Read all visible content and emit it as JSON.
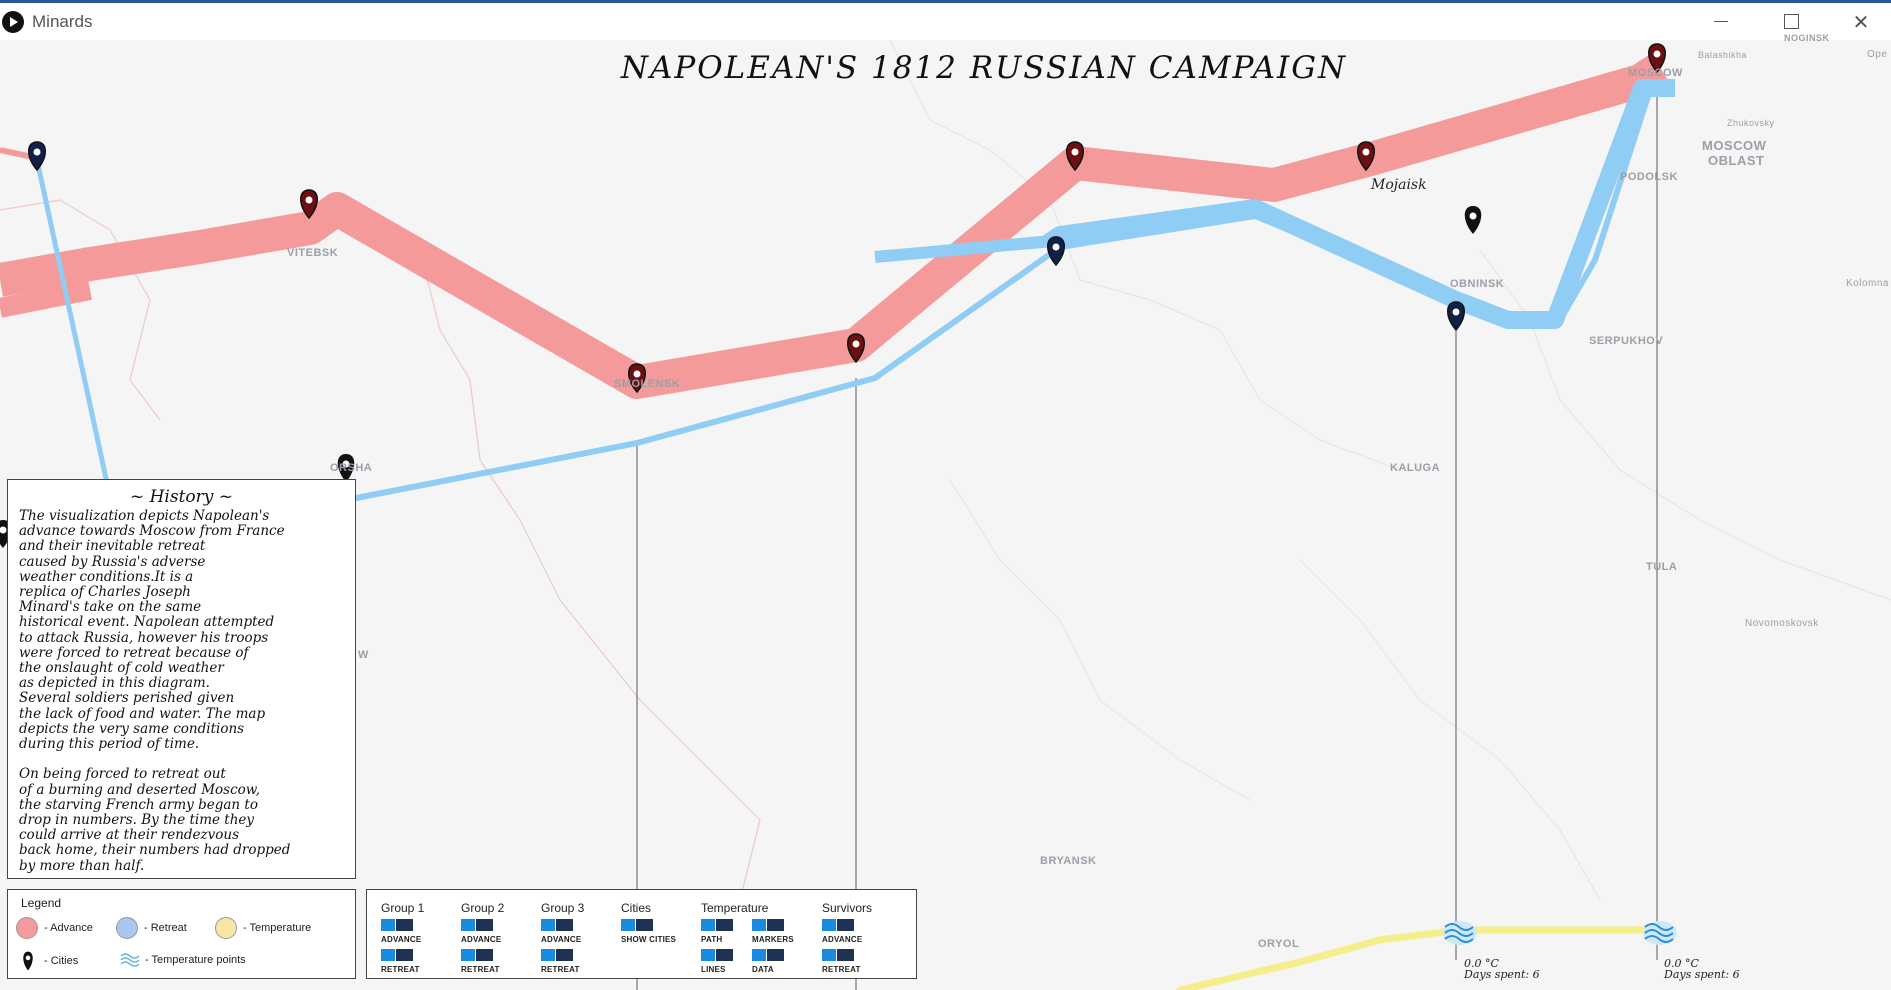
{
  "window": {
    "title": "Minards"
  },
  "map": {
    "title": "NAPOLEAN'S 1812 RUSSIAN CAMPAIGN",
    "annotation": "Mojaisk",
    "city_labels": [
      "VITEBSK",
      "SMOLENSK",
      "ORSHA",
      "MOSCOW",
      "PODOLSK",
      "OBNINSK",
      "SERPUKHOV",
      "KALUGA",
      "TULA",
      "BRYANSK",
      "ORYOL",
      "Balashikha",
      "NOGINSK",
      "Zhukovsky",
      "MOSCOW",
      "OBLAST",
      "Kolomna",
      "Novomoskovsk",
      "Ope",
      "W"
    ]
  },
  "history": {
    "title": "~ History ~",
    "text": "The visualization depicts Napolean's\nadvance towards Moscow from France\nand their inevitable retreat\ncaused by Russia's adverse\nweather conditions.It is a\nreplica of Charles Joseph\nMinard's take on the same\nhistorical event. Napolean attempted\nto attack Russia, however his troops\nwere forced to retreat because of\nthe onslaught of cold weather\nas depicted in this diagram.\nSeveral soldiers perished given\nthe lack of food and water. The map\ndepicts the very same conditions\nduring this period of time.\n\nOn being forced to retreat out\nof a burning and deserted Moscow,\nthe starving French army began to\ndrop in numbers. By the time they\ncould arrive at their rendezvous\nback home, their numbers had dropped\nby more than half."
  },
  "legend": {
    "title": "Legend",
    "advance": "- Advance",
    "retreat": "- Retreat",
    "temperature": "- Temperature",
    "cities": "- Cities",
    "temperature_points": "- Temperature points"
  },
  "controls": {
    "group1": {
      "label": "Group 1",
      "top": "ADVANCE",
      "bottom": "RETREAT"
    },
    "group2": {
      "label": "Group 2",
      "top": "ADVANCE",
      "bottom": "RETREAT"
    },
    "group3": {
      "label": "Group 3",
      "top": "ADVANCE",
      "bottom": "RETREAT"
    },
    "cities": {
      "label": "Cities",
      "top": "SHOW CITIES"
    },
    "temperature": {
      "label": "Temperature",
      "path": "PATH",
      "markers": "MARKERS",
      "lines": "LINES",
      "data": "DATA"
    },
    "survivors": {
      "label": "Survivors",
      "top": "ADVANCE",
      "bottom": "RETREAT"
    }
  },
  "temperature_points": [
    {
      "temp": "0.0 °C",
      "days": "Days spent: 6"
    },
    {
      "temp": "0.0 °C",
      "days": "Days spent: 6"
    }
  ],
  "colors": {
    "advance": "#f59a9a",
    "retreat": "#90cdf4",
    "temperature": "#f5ee8a",
    "marker_advance": "#6b0f12",
    "marker_retreat": "#10204a"
  }
}
